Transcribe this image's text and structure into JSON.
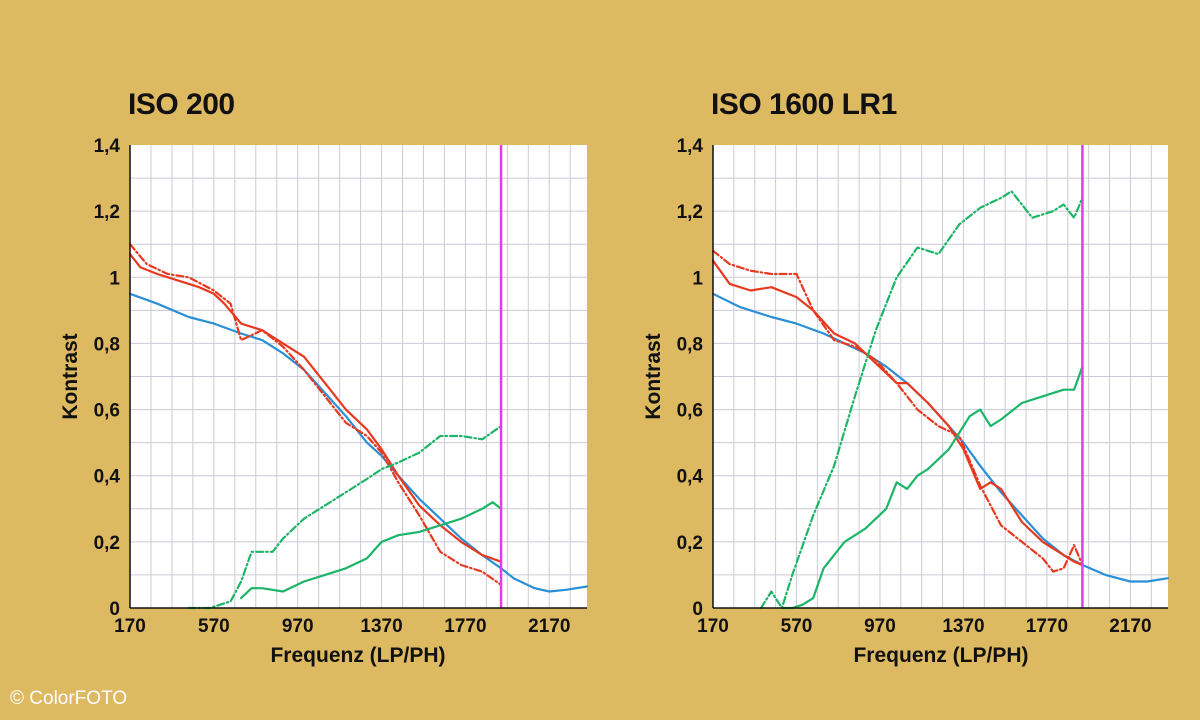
{
  "colors": {
    "background": "#DDB961",
    "plot_background": "#FFFFFF",
    "grid": "#C9CBD6",
    "blue": "#2B8FD6",
    "red": "#E8391F",
    "green": "#1DB568",
    "magenta": "#E23BE8"
  },
  "copyright": "© ColorFOTO",
  "chart_data": [
    {
      "type": "line",
      "title": "ISO 200",
      "xlabel": "Frequenz (LP/PH)",
      "ylabel": "Kontrast",
      "xlim": [
        170,
        2350
      ],
      "ylim": [
        0,
        1.4
      ],
      "xticks": [
        "170",
        "570",
        "970",
        "1370",
        "1770",
        "2170"
      ],
      "yticks": [
        "0",
        "0,2",
        "0,4",
        "0,6",
        "0,8",
        "1",
        "1,2",
        "1,4"
      ],
      "grid": true,
      "vline": 1940,
      "series": [
        {
          "style": "solid",
          "color": "blue",
          "x": [
            170,
            300,
            450,
            570,
            700,
            800,
            900,
            1000,
            1100,
            1200,
            1300,
            1370,
            1450,
            1550,
            1650,
            1750,
            1850,
            1940,
            2000,
            2100,
            2170,
            2250,
            2350
          ],
          "y": [
            0.95,
            0.92,
            0.88,
            0.86,
            0.83,
            0.81,
            0.77,
            0.72,
            0.65,
            0.58,
            0.5,
            0.46,
            0.4,
            0.33,
            0.27,
            0.21,
            0.16,
            0.12,
            0.09,
            0.06,
            0.05,
            0.055,
            0.065
          ]
        },
        {
          "style": "solid",
          "color": "red",
          "x": [
            170,
            220,
            300,
            400,
            500,
            570,
            620,
            700,
            800,
            900,
            1000,
            1100,
            1200,
            1300,
            1370,
            1450,
            1550,
            1650,
            1750,
            1850,
            1940
          ],
          "y": [
            1.07,
            1.03,
            1.01,
            0.99,
            0.97,
            0.95,
            0.92,
            0.86,
            0.84,
            0.8,
            0.76,
            0.68,
            0.6,
            0.54,
            0.48,
            0.4,
            0.31,
            0.25,
            0.2,
            0.16,
            0.14
          ]
        },
        {
          "style": "dashdot",
          "color": "red",
          "x": [
            170,
            250,
            350,
            450,
            570,
            650,
            700,
            800,
            900,
            1000,
            1100,
            1200,
            1300,
            1370,
            1450,
            1550,
            1650,
            1750,
            1850,
            1940
          ],
          "y": [
            1.1,
            1.04,
            1.01,
            1.0,
            0.96,
            0.92,
            0.81,
            0.84,
            0.79,
            0.72,
            0.64,
            0.56,
            0.52,
            0.47,
            0.38,
            0.28,
            0.17,
            0.13,
            0.11,
            0.07
          ]
        },
        {
          "style": "solid",
          "color": "green",
          "x": [
            700,
            750,
            800,
            900,
            1000,
            1100,
            1200,
            1300,
            1370,
            1450,
            1550,
            1650,
            1750,
            1850,
            1900,
            1940
          ],
          "y": [
            0.03,
            0.06,
            0.06,
            0.05,
            0.08,
            0.1,
            0.12,
            0.15,
            0.2,
            0.22,
            0.23,
            0.25,
            0.27,
            0.3,
            0.32,
            0.3
          ]
        },
        {
          "style": "dashdot",
          "color": "green",
          "x": [
            450,
            550,
            650,
            700,
            750,
            850,
            900,
            1000,
            1100,
            1200,
            1300,
            1370,
            1450,
            1550,
            1650,
            1750,
            1850,
            1940
          ],
          "y": [
            0.0,
            0.0,
            0.02,
            0.08,
            0.17,
            0.17,
            0.21,
            0.27,
            0.31,
            0.35,
            0.39,
            0.42,
            0.44,
            0.47,
            0.52,
            0.52,
            0.51,
            0.55
          ]
        }
      ]
    },
    {
      "type": "line",
      "title": "ISO 1600 LR1",
      "xlabel": "Frequenz (LP/PH)",
      "ylabel": "Kontrast",
      "xlim": [
        170,
        2350
      ],
      "ylim": [
        0,
        1.4
      ],
      "xticks": [
        "170",
        "570",
        "970",
        "1370",
        "1770",
        "2170"
      ],
      "yticks": [
        "0",
        "0,2",
        "0,4",
        "0,6",
        "0,8",
        "1",
        "1,2",
        "1,4"
      ],
      "grid": true,
      "vline": 1940,
      "series": [
        {
          "style": "solid",
          "color": "blue",
          "x": [
            170,
            300,
            450,
            570,
            700,
            800,
            900,
            1000,
            1100,
            1200,
            1300,
            1370,
            1450,
            1550,
            1650,
            1750,
            1850,
            1940,
            2050,
            2170,
            2250,
            2350
          ],
          "y": [
            0.95,
            0.91,
            0.88,
            0.86,
            0.83,
            0.8,
            0.77,
            0.73,
            0.68,
            0.62,
            0.55,
            0.5,
            0.43,
            0.35,
            0.28,
            0.21,
            0.16,
            0.13,
            0.1,
            0.08,
            0.08,
            0.09
          ]
        },
        {
          "style": "solid",
          "color": "red",
          "x": [
            170,
            250,
            350,
            450,
            570,
            650,
            750,
            850,
            950,
            1050,
            1100,
            1200,
            1300,
            1370,
            1450,
            1500,
            1550,
            1650,
            1750,
            1850,
            1900,
            1940
          ],
          "y": [
            1.05,
            0.98,
            0.96,
            0.97,
            0.94,
            0.9,
            0.83,
            0.8,
            0.74,
            0.68,
            0.68,
            0.62,
            0.55,
            0.48,
            0.36,
            0.38,
            0.36,
            0.26,
            0.2,
            0.16,
            0.14,
            0.13
          ]
        },
        {
          "style": "dashdot",
          "color": "red",
          "x": [
            170,
            250,
            350,
            450,
            570,
            650,
            750,
            850,
            950,
            1050,
            1150,
            1250,
            1350,
            1450,
            1550,
            1650,
            1750,
            1800,
            1850,
            1900,
            1940
          ],
          "y": [
            1.08,
            1.04,
            1.02,
            1.01,
            1.01,
            0.9,
            0.81,
            0.79,
            0.75,
            0.68,
            0.6,
            0.55,
            0.52,
            0.37,
            0.25,
            0.2,
            0.15,
            0.11,
            0.12,
            0.19,
            0.13
          ]
        },
        {
          "style": "solid",
          "color": "green",
          "x": [
            500,
            550,
            600,
            650,
            700,
            800,
            900,
            1000,
            1050,
            1100,
            1150,
            1200,
            1300,
            1350,
            1400,
            1450,
            1500,
            1550,
            1650,
            1750,
            1850,
            1900,
            1940
          ],
          "y": [
            0.0,
            0.0,
            0.01,
            0.03,
            0.12,
            0.2,
            0.24,
            0.3,
            0.38,
            0.36,
            0.4,
            0.42,
            0.48,
            0.53,
            0.58,
            0.6,
            0.55,
            0.57,
            0.62,
            0.64,
            0.66,
            0.66,
            0.73
          ]
        },
        {
          "style": "dashdot",
          "color": "green",
          "x": [
            400,
            450,
            500,
            550,
            650,
            750,
            850,
            950,
            1050,
            1150,
            1250,
            1350,
            1450,
            1550,
            1600,
            1700,
            1800,
            1850,
            1900,
            1940
          ],
          "y": [
            0.0,
            0.05,
            0.0,
            0.1,
            0.28,
            0.43,
            0.64,
            0.84,
            1.0,
            1.09,
            1.07,
            1.16,
            1.21,
            1.24,
            1.26,
            1.18,
            1.2,
            1.22,
            1.18,
            1.24
          ]
        }
      ]
    }
  ]
}
